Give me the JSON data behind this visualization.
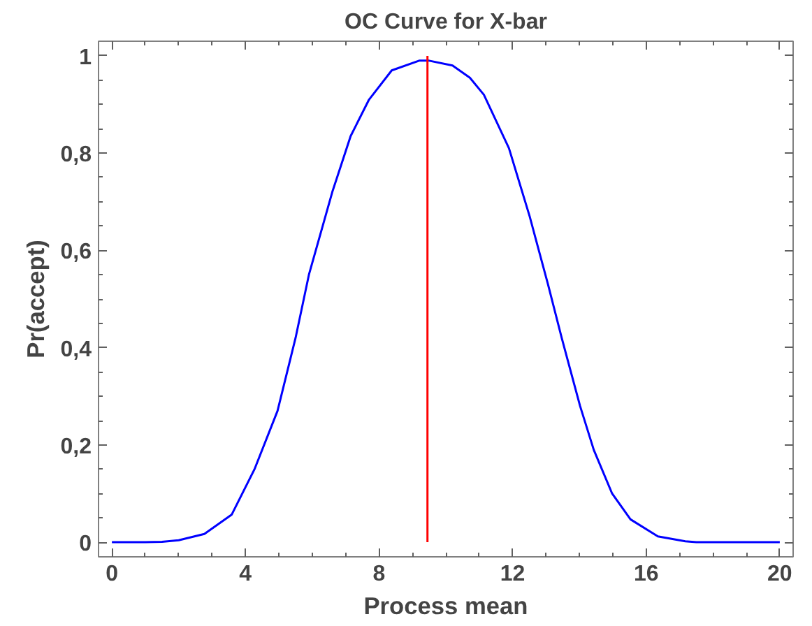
{
  "chart_data": {
    "type": "line",
    "title": "OC Curve for X-bar",
    "xlabel": "Process mean",
    "ylabel": "Pr(accept)",
    "x": [
      0,
      1,
      1.5,
      2,
      2.77,
      3.59,
      4.27,
      4.96,
      5.5,
      5.9,
      6.6,
      7.15,
      7.7,
      8.38,
      9.2,
      9.5,
      10.2,
      10.72,
      11.14,
      11.89,
      12.51,
      13.06,
      13.47,
      14.02,
      14.43,
      14.98,
      15.53,
      16.35,
      17.17,
      17.5,
      18,
      19,
      20
    ],
    "series": [
      {
        "color": "#0000ff",
        "values": [
          0,
          0,
          0.001,
          0.004,
          0.017,
          0.057,
          0.15,
          0.27,
          0.42,
          0.55,
          0.72,
          0.835,
          0.91,
          0.97,
          0.99,
          0.99,
          0.98,
          0.955,
          0.92,
          0.81,
          0.67,
          0.53,
          0.42,
          0.28,
          0.19,
          0.1,
          0.047,
          0.012,
          0.002,
          0,
          0,
          0,
          0
        ]
      }
    ],
    "xlim": [
      -0.4,
      20.4
    ],
    "ylim": [
      -0.03,
      1.03
    ],
    "xticks": [
      0,
      4,
      8,
      12,
      16,
      20
    ],
    "yticks": [
      0,
      {
        "value": 0.2,
        "label": "0,2"
      },
      {
        "value": 0.4,
        "label": "0,4"
      },
      {
        "value": 0.6,
        "label": "0,6"
      },
      {
        "value": 0.8,
        "label": "0,8"
      },
      1
    ],
    "ref_lines": [
      {
        "axis": "x",
        "value": 9.45,
        "color": "#ff0000"
      }
    ],
    "grid": false,
    "marker": "none",
    "line_style": "solid"
  }
}
